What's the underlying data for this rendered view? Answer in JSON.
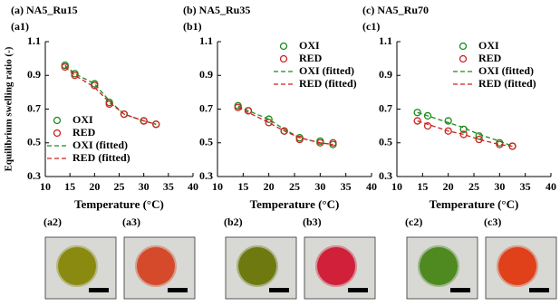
{
  "chart_data": [
    {
      "type": "scatter",
      "title": "(a) NA5_Ru15",
      "subtitle": "(a1)",
      "x_label": "Temperature (°C)",
      "y_label": "Equilibrium swelling ratio (-)",
      "x": [
        14,
        16,
        20,
        23,
        26,
        30,
        32.5
      ],
      "xlim": [
        10,
        40
      ],
      "xticks": [
        10,
        15,
        20,
        25,
        30,
        35,
        40
      ],
      "ylim": [
        0.3,
        1.1
      ],
      "yticks": [
        0.3,
        0.5,
        0.7,
        0.9,
        1.1
      ],
      "legend": "lower left",
      "series": [
        {
          "name": "OXI",
          "color": "#1a8a1a",
          "style": "marker",
          "values": [
            0.96,
            0.91,
            0.85,
            0.74,
            0.67,
            0.63,
            0.61
          ]
        },
        {
          "name": "RED",
          "color": "#cc2222",
          "style": "marker",
          "values": [
            0.95,
            0.9,
            0.84,
            0.73,
            0.67,
            0.63,
            0.61
          ]
        },
        {
          "name": "OXI (fitted)",
          "color": "#1a8a1a",
          "style": "dashed",
          "values": [
            0.96,
            0.91,
            0.85,
            0.75,
            0.67,
            0.63,
            0.61
          ]
        },
        {
          "name": "RED (fitted)",
          "color": "#cc2222",
          "style": "dashed",
          "values": [
            0.95,
            0.9,
            0.83,
            0.74,
            0.67,
            0.63,
            0.61
          ]
        }
      ]
    },
    {
      "type": "scatter",
      "title": "(b) NA5_Ru35",
      "subtitle": "(b1)",
      "x_label": "Temperature (°C)",
      "x": [
        14,
        16,
        20,
        23,
        26,
        30,
        32.5
      ],
      "xlim": [
        10,
        40
      ],
      "xticks": [
        10,
        15,
        20,
        25,
        30,
        35,
        40
      ],
      "ylim": [
        0.3,
        1.1
      ],
      "yticks": [
        0.3,
        0.5,
        0.7,
        0.9,
        1.1
      ],
      "legend": "upper right",
      "series": [
        {
          "name": "OXI",
          "color": "#1a8a1a",
          "style": "marker",
          "values": [
            0.72,
            0.69,
            0.64,
            0.57,
            0.53,
            0.51,
            0.49
          ]
        },
        {
          "name": "RED",
          "color": "#cc2222",
          "style": "marker",
          "values": [
            0.71,
            0.69,
            0.62,
            0.57,
            0.52,
            0.5,
            0.5
          ]
        },
        {
          "name": "OXI (fitted)",
          "color": "#1a8a1a",
          "style": "dashed",
          "values": [
            0.72,
            0.69,
            0.64,
            0.58,
            0.53,
            0.5,
            0.49
          ]
        },
        {
          "name": "RED (fitted)",
          "color": "#cc2222",
          "style": "dashed",
          "values": [
            0.71,
            0.68,
            0.62,
            0.57,
            0.53,
            0.5,
            0.49
          ]
        }
      ]
    },
    {
      "type": "scatter",
      "title": "(c) NA5_Ru70",
      "subtitle": "(c1)",
      "x_label": "Temperature (°C)",
      "x": [
        14,
        16,
        20,
        23,
        26,
        30,
        32.5
      ],
      "xlim": [
        10,
        40
      ],
      "xticks": [
        10,
        15,
        20,
        25,
        30,
        35,
        40
      ],
      "ylim": [
        0.3,
        1.1
      ],
      "yticks": [
        0.3,
        0.5,
        0.7,
        0.9,
        1.1
      ],
      "legend": "upper right",
      "series": [
        {
          "name": "OXI",
          "color": "#1a8a1a",
          "style": "marker",
          "values": [
            0.68,
            0.66,
            0.63,
            0.58,
            0.54,
            0.5,
            0.48
          ]
        },
        {
          "name": "RED",
          "color": "#cc2222",
          "style": "marker",
          "values": [
            0.63,
            0.6,
            0.57,
            0.55,
            0.52,
            0.49,
            0.48
          ]
        },
        {
          "name": "OXI (fitted)",
          "color": "#1a8a1a",
          "style": "dashed",
          "values": [
            0.68,
            0.66,
            0.62,
            0.59,
            0.55,
            0.51,
            0.48
          ]
        },
        {
          "name": "RED (fitted)",
          "color": "#cc2222",
          "style": "dashed",
          "values": [
            0.63,
            0.61,
            0.57,
            0.55,
            0.52,
            0.49,
            0.48
          ]
        }
      ]
    }
  ],
  "photos": [
    {
      "label": "(a2)",
      "color": "#8a8a10"
    },
    {
      "label": "(a3)",
      "color": "#d44a2a"
    },
    {
      "label": "(b2)",
      "color": "#6e7a10"
    },
    {
      "label": "(b3)",
      "color": "#d0203a"
    },
    {
      "label": "(c2)",
      "color": "#4e8a20"
    },
    {
      "label": "(c3)",
      "color": "#e0401a"
    }
  ]
}
